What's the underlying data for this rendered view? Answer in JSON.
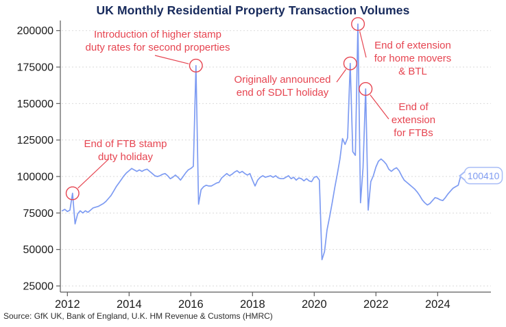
{
  "title": "UK Monthly Residential Property Transaction Volumes",
  "source": "Source: GfK UK, Bank of England, U.K. HM Revenue & Customs (HMRC)",
  "last_value_label": "100410",
  "colors": {
    "line": "#7D9BF2",
    "annotation_red": "#E64450",
    "title_navy": "#16295B",
    "grid": "#DADADA",
    "axis": "#5a5a5a",
    "tick_label": "#1a1a1a",
    "end_label_border": "#A7BCF6",
    "end_label_text": "#7E9BF0"
  },
  "chart_data": {
    "type": "line",
    "title": "UK Monthly Residential Property Transaction Volumes",
    "xlabel": "",
    "ylabel": "",
    "grid": "horizontal-dashed",
    "legend": "none",
    "x_ticks": [
      2012,
      2014,
      2016,
      2018,
      2020,
      2022,
      2024
    ],
    "y_ticks": [
      25000,
      50000,
      75000,
      100000,
      125000,
      150000,
      175000,
      200000
    ],
    "ylim": [
      18000,
      207000
    ],
    "xlim": [
      2011.8,
      2025.1
    ],
    "series": [
      {
        "name": "Monthly residential property transactions",
        "frequency": "monthly",
        "start": "2011-11",
        "values": [
          76500,
          77500,
          76000,
          77000,
          88500,
          67500,
          74500,
          76500,
          75000,
          76500,
          75500,
          77000,
          78500,
          79000,
          79500,
          80500,
          81500,
          83000,
          85000,
          87000,
          90000,
          93000,
          95500,
          98000,
          100500,
          102500,
          104000,
          105500,
          104500,
          103500,
          104500,
          103500,
          104500,
          105000,
          103500,
          102000,
          100500,
          100000,
          100500,
          101500,
          102000,
          100500,
          98500,
          99500,
          101000,
          99500,
          97500,
          100000,
          102500,
          104500,
          105500,
          107000,
          176000,
          81000,
          91000,
          93000,
          94000,
          93500,
          93500,
          94500,
          95500,
          96000,
          99000,
          100500,
          102000,
          100500,
          101500,
          103000,
          104000,
          102500,
          103500,
          102000,
          101000,
          102000,
          97500,
          93500,
          97500,
          99500,
          100500,
          99500,
          100000,
          100500,
          99500,
          100500,
          99000,
          98500,
          98500,
          99500,
          100500,
          98500,
          99500,
          97500,
          99000,
          98500,
          97000,
          98500,
          97000,
          96500,
          99500,
          100000,
          97500,
          43000,
          48500,
          63500,
          72500,
          82000,
          92500,
          102000,
          112000,
          126000,
          122000,
          126500,
          177500,
          117000,
          114500,
          204500,
          82000,
          106000,
          160000,
          77000,
          96500,
          100500,
          106500,
          110500,
          112000,
          110500,
          108500,
          105000,
          103500,
          105000,
          106000,
          104000,
          100500,
          97500,
          96000,
          94500,
          93000,
          91500,
          89500,
          87000,
          84000,
          82000,
          80500,
          81500,
          83500,
          85500,
          85000,
          84000,
          83500,
          85500,
          88000,
          90000,
          92000,
          93000,
          94000,
          100410
        ]
      }
    ],
    "annotations": [
      {
        "label": "End of FTB stamp duty holiday",
        "lines": [
          "End of FTB stamp",
          "duty holiday"
        ],
        "date": "2012-03",
        "value": 88500
      },
      {
        "label": "Introduction of higher stamp duty rates for second properties",
        "lines": [
          "Introduction of higher stamp",
          "duty rates for second properties"
        ],
        "date": "2016-03",
        "value": 176000
      },
      {
        "label": "Originally announced end of SDLT holiday",
        "lines": [
          "Originally announced",
          "end of SDLT holiday"
        ],
        "date": "2021-03",
        "value": 177500
      },
      {
        "label": "End of extension for home movers & BTL",
        "lines": [
          "End of extension",
          "for home movers",
          "& BTL"
        ],
        "date": "2021-06",
        "value": 204500
      },
      {
        "label": "End of extension for FTBs",
        "lines": [
          "End of",
          "extension",
          "for FTBs"
        ],
        "date": "2021-09",
        "value": 160000
      }
    ],
    "last_point": {
      "date": "2024-10",
      "value": 100410,
      "label": "100410"
    }
  }
}
